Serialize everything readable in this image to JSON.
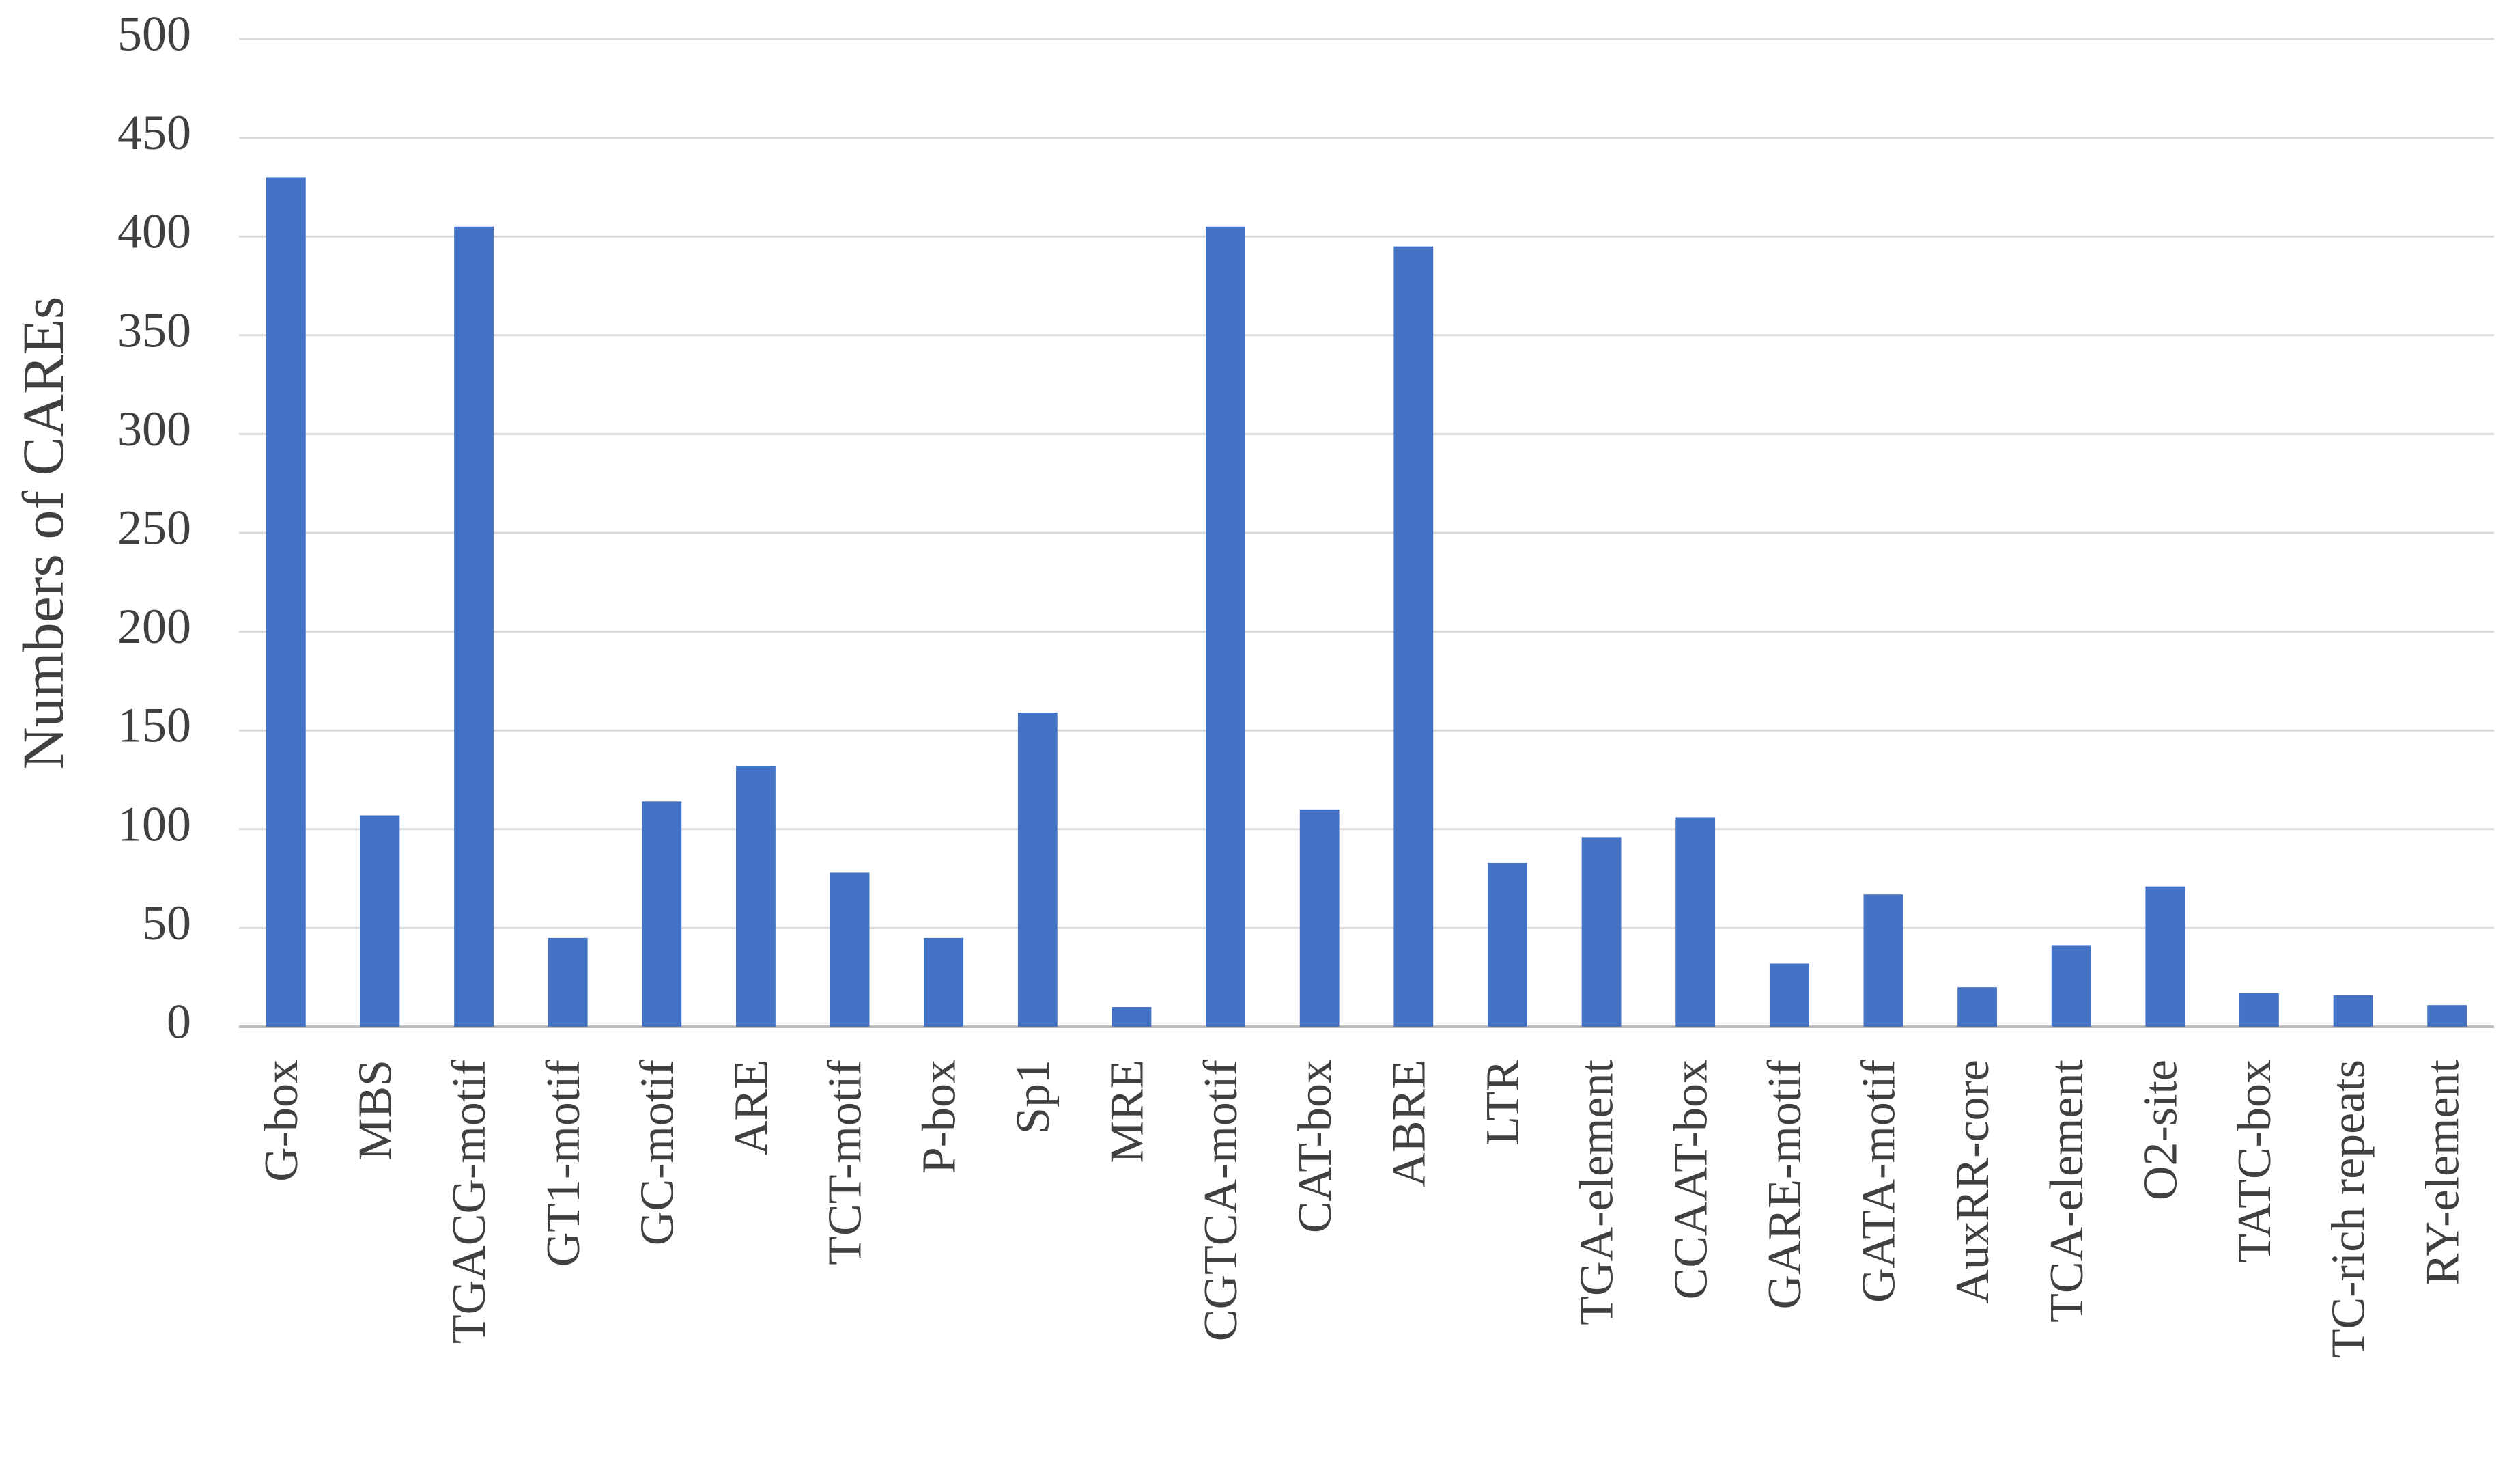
{
  "chart_data": {
    "type": "bar",
    "y_label": "Numbers of CAREs",
    "categories": [
      "G-box",
      "MBS",
      "TGACG-motif",
      "GT1-motif",
      "GC-motif",
      "ARE",
      "TCT-motif",
      "P-box",
      "Sp1",
      "MRE",
      "CGTCA-motif",
      "CAT-box",
      "ABRE",
      "LTR",
      "TGA-element",
      "CCAAT-box",
      "GARE-motif",
      "GATA-motif",
      "AuxRR-core",
      "TCA-element",
      "O2-site",
      "TATC-box",
      "TC-rich repeats",
      "RY-element"
    ],
    "values": [
      430,
      107,
      405,
      45,
      114,
      132,
      78,
      45,
      159,
      10,
      405,
      110,
      395,
      83,
      96,
      106,
      32,
      67,
      20,
      41,
      71,
      17,
      16,
      11
    ],
    "color": "#4472c4",
    "ylim": [
      0,
      500
    ],
    "yticks": [
      0,
      50,
      100,
      150,
      200,
      250,
      300,
      350,
      400,
      450,
      500
    ],
    "grid": true
  }
}
